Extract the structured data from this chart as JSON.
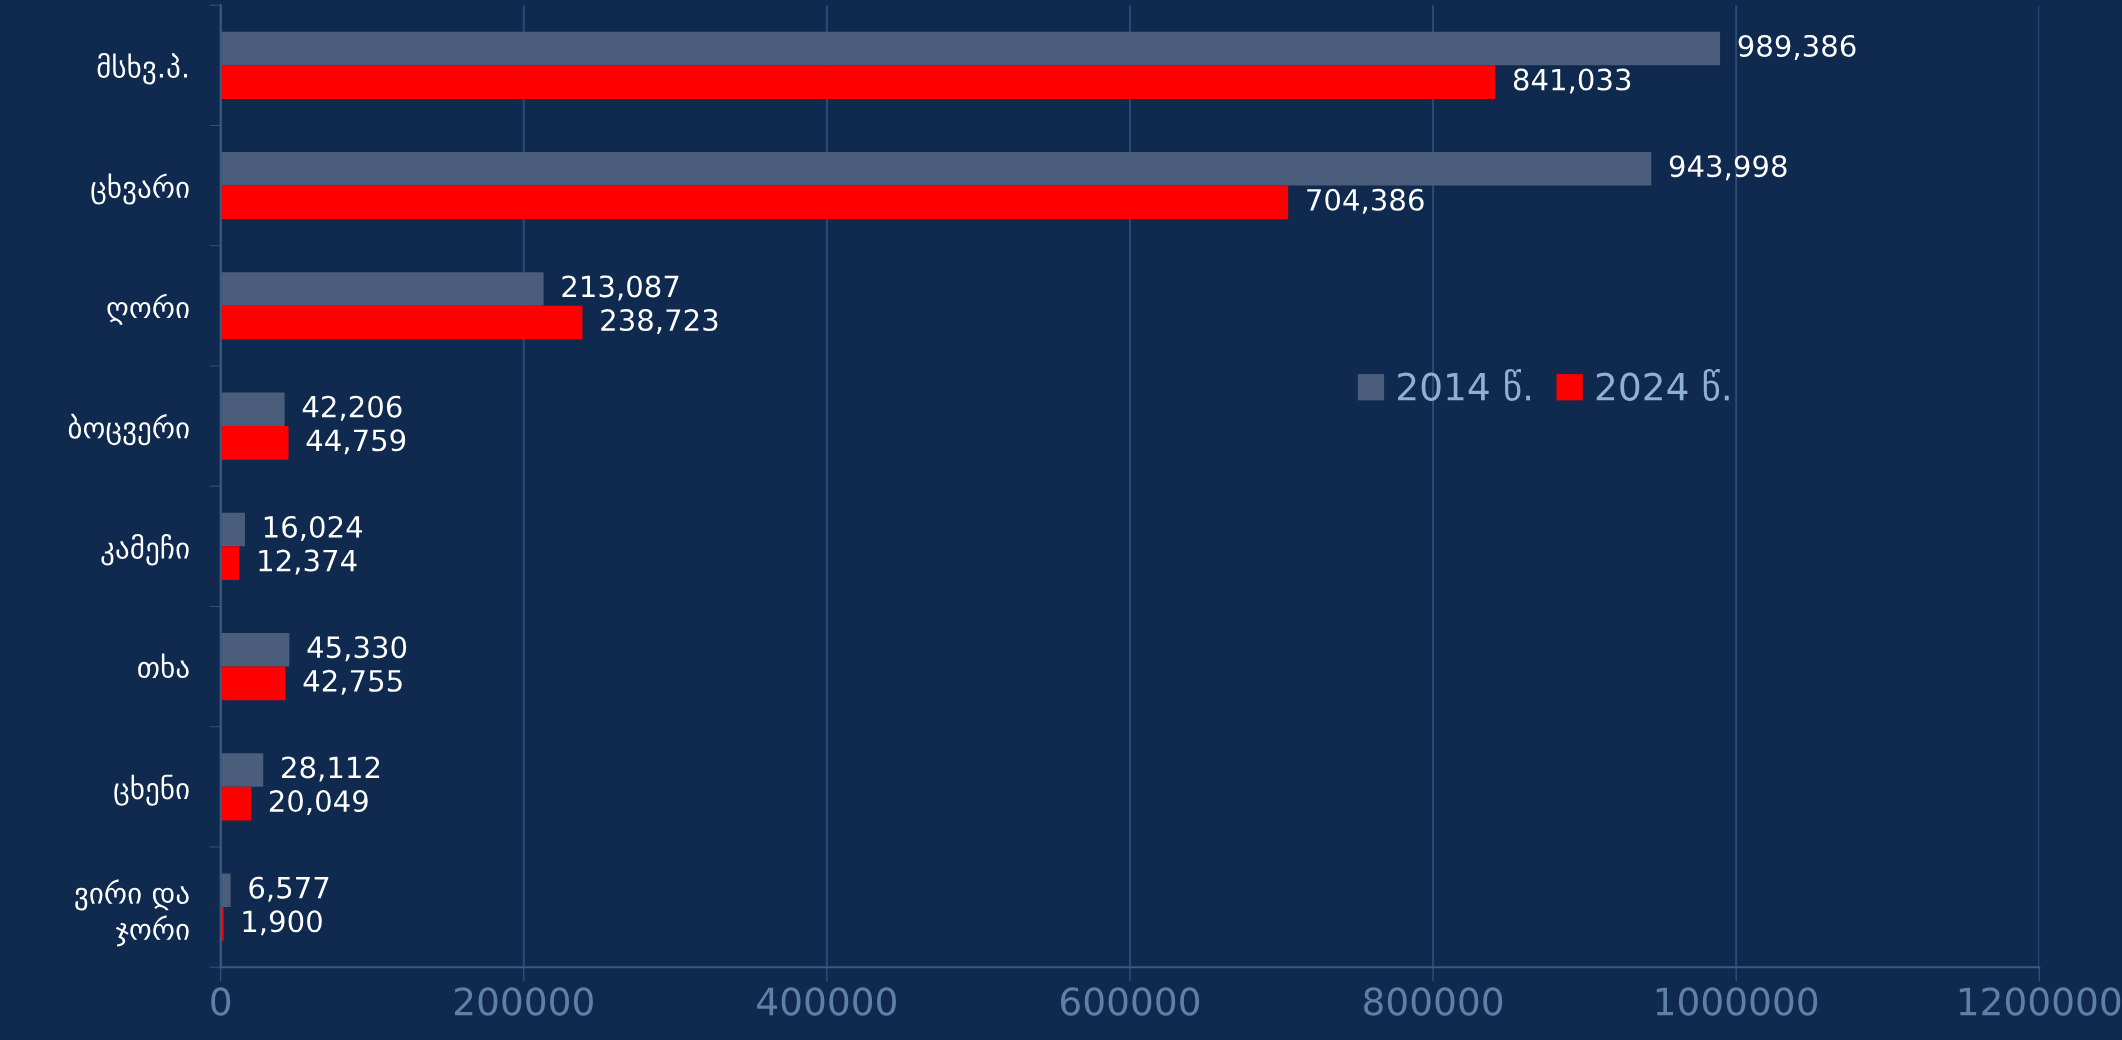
{
  "chart_data": {
    "type": "bar",
    "orientation": "horizontal",
    "categories": [
      "მსხვ.პ.",
      "ცხვარი",
      "ღორი",
      "ბოცვერი",
      "კამეჩი",
      "თხა",
      "ცხენი",
      "ვირი და\nჯორი"
    ],
    "series": [
      {
        "name": "2014 წ.",
        "color": "#4a5d7a",
        "values": [
          989386,
          943998,
          213087,
          42206,
          16024,
          45330,
          28112,
          6577
        ],
        "value_labels": [
          "989,386",
          "943,998",
          "213,087",
          "42,206",
          "16,024",
          "45,330",
          "28,112",
          "6,577"
        ]
      },
      {
        "name": "2024 წ.",
        "color": "#ff0000",
        "values": [
          841033,
          704386,
          238723,
          44759,
          12374,
          42755,
          20049,
          1900
        ],
        "value_labels": [
          "841,033",
          "704,386",
          "238,723",
          "44,759",
          "12,374",
          "42,755",
          "20,049",
          "1,900"
        ]
      }
    ],
    "xlim": [
      0,
      1200000
    ],
    "xticks": [
      0,
      200000,
      400000,
      600000,
      800000,
      1000000,
      1200000
    ],
    "grid": "x",
    "legend": "right"
  }
}
